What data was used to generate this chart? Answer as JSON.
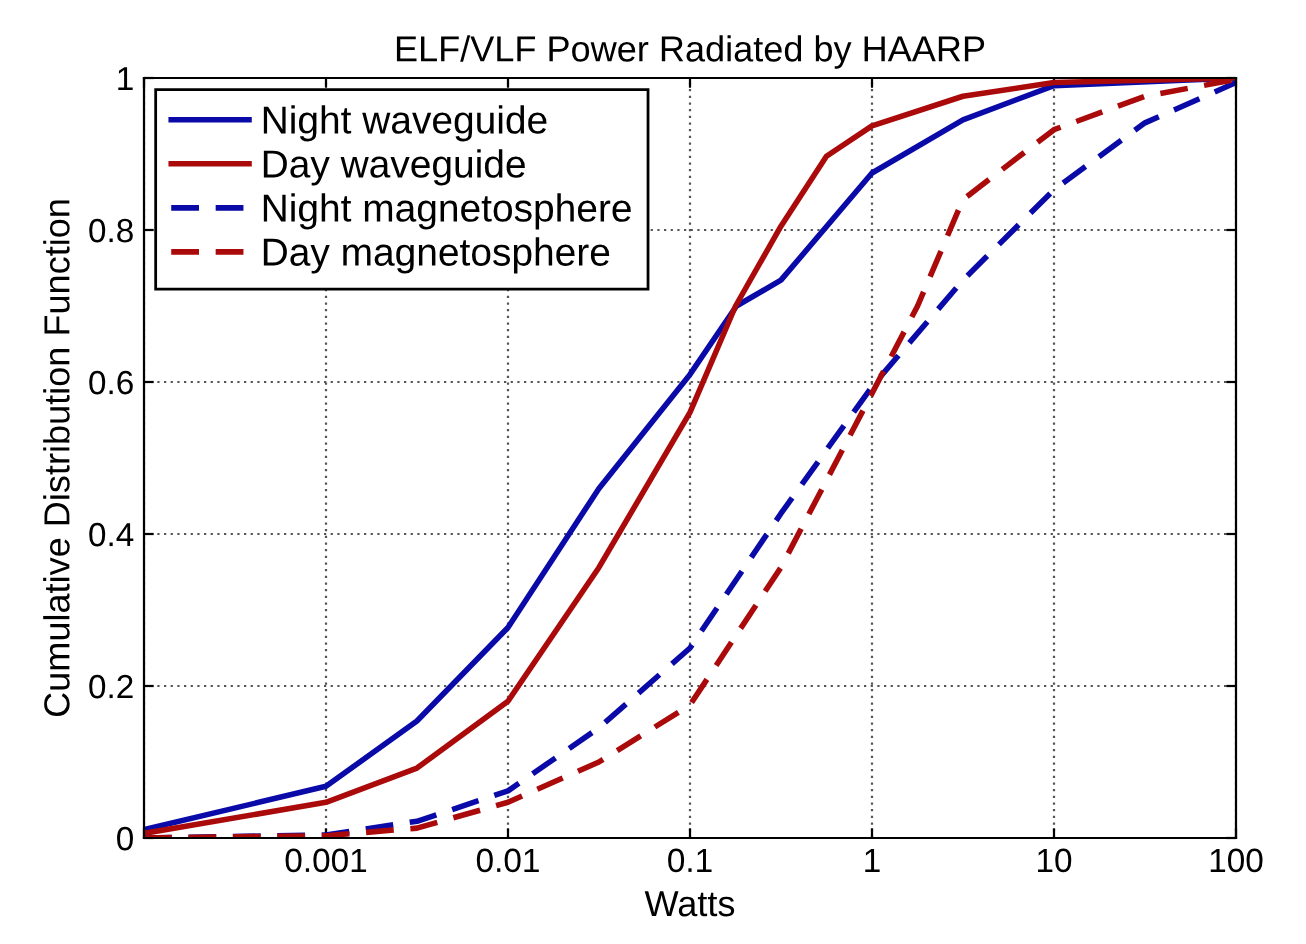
{
  "chart_data": {
    "type": "line",
    "title": "ELF/VLF Power Radiated by HAARP",
    "xlabel": "Watts",
    "ylabel": "Cumulative Distribution Function",
    "log": "x",
    "xlim": [
      0.0001,
      100
    ],
    "xticks": [
      {
        "value": 0.0001,
        "label": null
      },
      0.001,
      0.01,
      0.1,
      1,
      10,
      100
    ],
    "ylim": [
      0,
      1
    ],
    "yticks": [
      0,
      0.2,
      0.4,
      0.6,
      0.8,
      1
    ],
    "grid": true,
    "legend": "top left",
    "marker": "none",
    "series": [
      {
        "name": "Night waveguide",
        "color": "#0a0aa8",
        "line_style": "solid",
        "x": [
          0.0001,
          0.001,
          0.00316,
          0.01,
          0.0316,
          0.1,
          0.18,
          0.316,
          1,
          3.16,
          10,
          100
        ],
        "values": [
          0.011,
          0.068,
          0.154,
          0.277,
          0.46,
          0.61,
          0.7,
          0.734,
          0.875,
          0.945,
          0.99,
          1.0
        ]
      },
      {
        "name": "Day waveguide",
        "color": "#aa0a0a",
        "line_style": "solid",
        "x": [
          0.0001,
          0.001,
          0.00316,
          0.01,
          0.0316,
          0.1,
          0.178,
          0.316,
          0.562,
          1,
          3.16,
          10,
          100
        ],
        "values": [
          0.006,
          0.047,
          0.092,
          0.18,
          0.356,
          0.56,
          0.7,
          0.805,
          0.897,
          0.937,
          0.976,
          0.994,
          1.0
        ]
      },
      {
        "name": "Night magnetosphere",
        "color": "#0a0aa8",
        "line_style": "dashed",
        "x": [
          0.0001,
          0.001,
          0.00316,
          0.01,
          0.0316,
          0.1,
          0.316,
          1,
          3.16,
          10,
          31.6,
          100
        ],
        "values": [
          0.0,
          0.004,
          0.022,
          0.062,
          0.145,
          0.25,
          0.427,
          0.594,
          0.734,
          0.853,
          0.941,
          0.994
        ]
      },
      {
        "name": "Day magnetosphere",
        "color": "#aa0a0a",
        "line_style": "dashed",
        "x": [
          0.0001,
          0.001,
          0.00316,
          0.01,
          0.0316,
          0.1,
          0.316,
          1,
          1.78,
          3.16,
          10,
          31.6,
          100
        ],
        "values": [
          0.0,
          0.003,
          0.013,
          0.047,
          0.1,
          0.175,
          0.356,
          0.585,
          0.7,
          0.84,
          0.932,
          0.976,
          0.998
        ]
      }
    ]
  }
}
